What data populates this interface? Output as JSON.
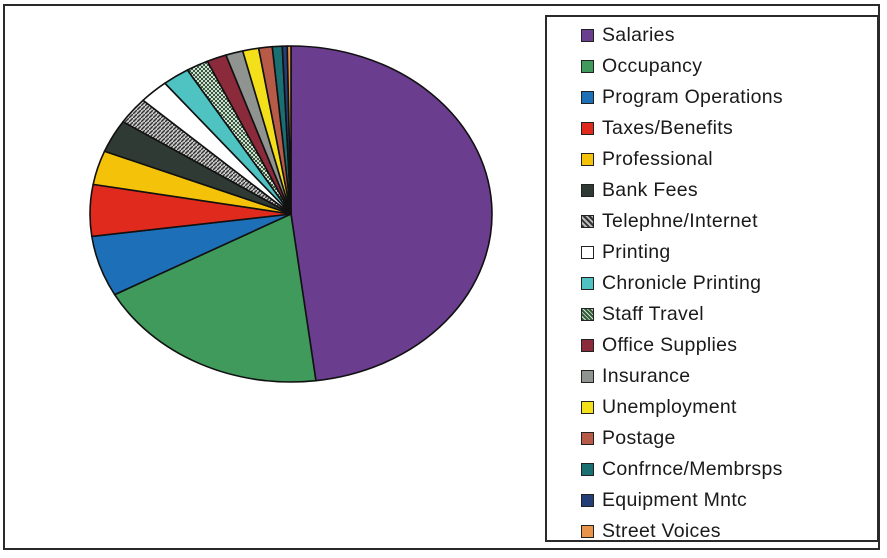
{
  "chart_data": {
    "type": "pie",
    "legend_position": "right",
    "slices": [
      {
        "label": "Salaries",
        "value": 48.5,
        "color": "#6b3d8f",
        "pattern": "solid"
      },
      {
        "label": "Occupancy",
        "value": 19.2,
        "color": "#3f9a5c",
        "pattern": "solid"
      },
      {
        "label": "Program Operations",
        "value": 5.9,
        "color": "#1d6fb8",
        "pattern": "solid"
      },
      {
        "label": "Taxes/Benefits",
        "value": 5.0,
        "color": "#e02a1e",
        "pattern": "solid"
      },
      {
        "label": "Professional",
        "value": 3.3,
        "color": "#f5c20a",
        "pattern": "solid"
      },
      {
        "label": "Bank Fees",
        "value": 3.2,
        "color": "#2e3a33",
        "pattern": "solid"
      },
      {
        "label": "Telephne/Internet",
        "value": 2.6,
        "color": "#8a8a8a",
        "pattern": "hatch"
      },
      {
        "label": "Printing",
        "value": 2.4,
        "color": "#ffffff",
        "pattern": "solid"
      },
      {
        "label": "Chronicle Printing",
        "value": 2.2,
        "color": "#4fc2c2",
        "pattern": "solid"
      },
      {
        "label": "Staff Travel",
        "value": 1.8,
        "color": "#2f5e36",
        "pattern": "check"
      },
      {
        "label": "Office Supplies",
        "value": 1.6,
        "color": "#8b2a3a",
        "pattern": "solid"
      },
      {
        "label": "Insurance",
        "value": 1.4,
        "color": "#8f9490",
        "pattern": "solid"
      },
      {
        "label": "Unemployment",
        "value": 1.3,
        "color": "#f4e01a",
        "pattern": "solid"
      },
      {
        "label": "Postage",
        "value": 1.1,
        "color": "#b85a48",
        "pattern": "solid"
      },
      {
        "label": "Confrnce/Membrsps",
        "value": 0.8,
        "color": "#1a6f72",
        "pattern": "solid"
      },
      {
        "label": "Equipment Mntc",
        "value": 0.4,
        "color": "#243e78",
        "pattern": "solid"
      },
      {
        "label": "Street Voices",
        "value": 0.3,
        "color": "#e8944a",
        "pattern": "solid"
      }
    ]
  }
}
